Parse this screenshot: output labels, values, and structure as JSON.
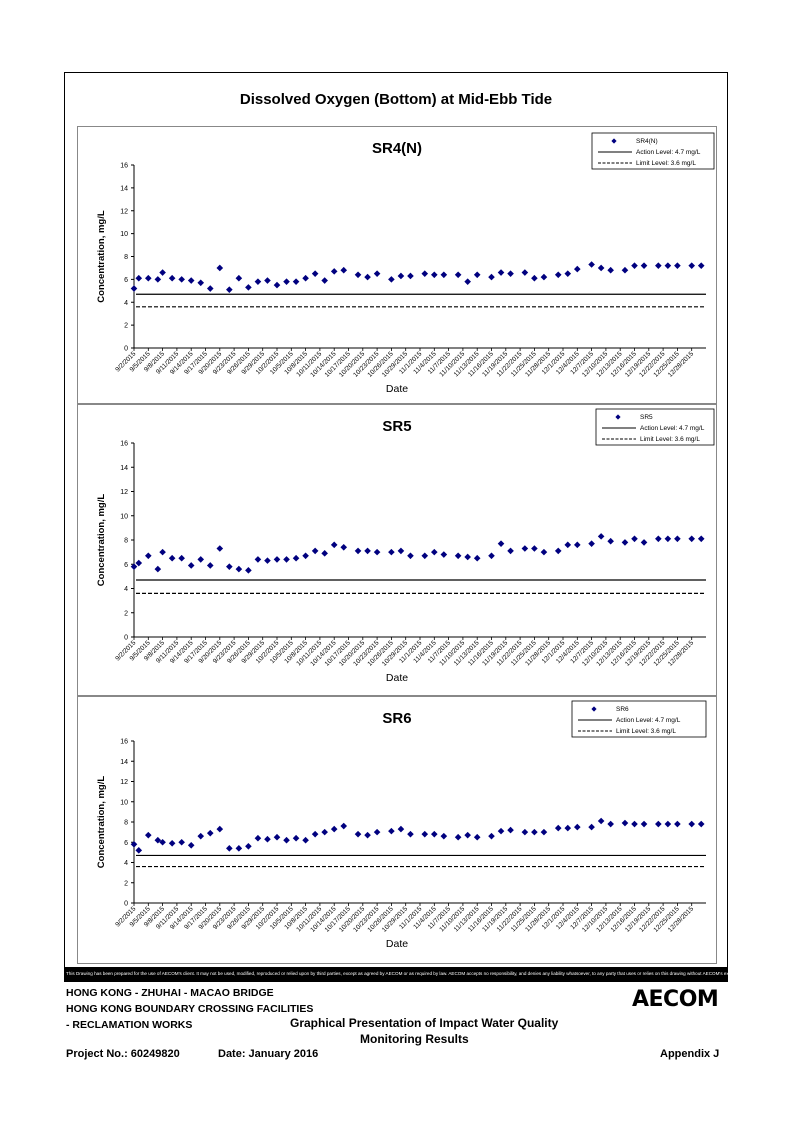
{
  "main_title": "Dissolved Oxygen (Bottom) at Mid-Ebb Tide",
  "chart_data": [
    {
      "type": "scatter",
      "title": "SR4(N)",
      "xlabel": "Date",
      "ylabel": "Concentration, mg/L",
      "ylim": [
        0,
        16
      ],
      "yticks": [
        0,
        2,
        4,
        6,
        8,
        10,
        12,
        14,
        16
      ],
      "x_tick_labels": [
        "9/2/2015",
        "9/5/2015",
        "9/8/2015",
        "9/11/2015",
        "9/14/2015",
        "9/17/2015",
        "9/20/2015",
        "9/23/2015",
        "9/26/2015",
        "9/29/2015",
        "10/2/2015",
        "10/5/2015",
        "10/8/2015",
        "10/11/2015",
        "10/14/2015",
        "10/17/2015",
        "10/20/2015",
        "10/23/2015",
        "10/26/2015",
        "10/29/2015",
        "11/1/2015",
        "11/4/2015",
        "11/7/2015",
        "11/10/2015",
        "11/13/2015",
        "11/16/2015",
        "11/19/2015",
        "11/22/2015",
        "11/25/2015",
        "11/28/2015",
        "12/1/2015",
        "12/4/2015",
        "12/7/2015",
        "12/10/2015",
        "12/13/2015",
        "12/16/2015",
        "12/19/2015",
        "12/22/2015",
        "12/25/2015",
        "12/28/2015"
      ],
      "x_range": [
        "9/2/2015",
        "12/31/2015"
      ],
      "legend_position": "top-right",
      "series": [
        {
          "name": "SR4(N)",
          "marker": "diamond",
          "color": "#00007f",
          "x": [
            "9/2/2015",
            "9/3/2015",
            "9/5/2015",
            "9/7/2015",
            "9/8/2015",
            "9/10/2015",
            "9/12/2015",
            "9/14/2015",
            "9/16/2015",
            "9/18/2015",
            "9/20/2015",
            "9/22/2015",
            "9/24/2015",
            "9/26/2015",
            "9/28/2015",
            "9/30/2015",
            "10/2/2015",
            "10/4/2015",
            "10/6/2015",
            "10/8/2015",
            "10/10/2015",
            "10/12/2015",
            "10/14/2015",
            "10/16/2015",
            "10/19/2015",
            "10/21/2015",
            "10/23/2015",
            "10/26/2015",
            "10/28/2015",
            "10/30/2015",
            "11/2/2015",
            "11/4/2015",
            "11/6/2015",
            "11/9/2015",
            "11/11/2015",
            "11/13/2015",
            "11/16/2015",
            "11/18/2015",
            "11/20/2015",
            "11/23/2015",
            "11/25/2015",
            "11/27/2015",
            "11/30/2015",
            "12/2/2015",
            "12/4/2015",
            "12/7/2015",
            "12/9/2015",
            "12/11/2015",
            "12/14/2015",
            "12/16/2015",
            "12/18/2015",
            "12/21/2015",
            "12/23/2015",
            "12/25/2015",
            "12/28/2015",
            "12/30/2015"
          ],
          "y": [
            5.2,
            6.1,
            6.1,
            6.0,
            6.6,
            6.1,
            6.0,
            5.9,
            5.7,
            5.2,
            7.0,
            5.1,
            6.1,
            5.3,
            5.8,
            5.9,
            5.5,
            5.8,
            5.8,
            6.1,
            6.5,
            5.9,
            6.7,
            6.8,
            6.4,
            6.2,
            6.5,
            6.0,
            6.3,
            6.3,
            6.5,
            6.4,
            6.4,
            6.4,
            5.8,
            6.4,
            6.2,
            6.6,
            6.5,
            6.6,
            6.1,
            6.2,
            6.4,
            6.5,
            6.9,
            7.3,
            7.0,
            6.8,
            6.8,
            7.2,
            7.2,
            7.2,
            7.2,
            7.2,
            7.2,
            7.2
          ]
        },
        {
          "name": "Action Level: 4.7 mg/L",
          "value": 4.7,
          "style": "solid"
        },
        {
          "name": "Limit Level: 3.6 mg/L",
          "value": 3.6,
          "style": "dashed"
        }
      ]
    },
    {
      "type": "scatter",
      "title": "SR5",
      "xlabel": "Date",
      "ylabel": "Concentration, mg/L",
      "ylim": [
        0,
        16
      ],
      "yticks": [
        0,
        2,
        4,
        6,
        8,
        10,
        12,
        14,
        16
      ],
      "x_tick_labels": [
        "9/2/2015",
        "9/5/2015",
        "9/8/2015",
        "9/11/2015",
        "9/14/2015",
        "9/17/2015",
        "9/20/2015",
        "9/23/2015",
        "9/26/2015",
        "9/29/2015",
        "10/2/2015",
        "10/5/2015",
        "10/8/2015",
        "10/11/2015",
        "10/14/2015",
        "10/17/2015",
        "10/20/2015",
        "10/23/2015",
        "10/26/2015",
        "10/29/2015",
        "11/1/2015",
        "11/4/2015",
        "11/7/2015",
        "11/10/2015",
        "11/13/2015",
        "11/16/2015",
        "11/19/2015",
        "11/22/2015",
        "11/25/2015",
        "11/28/2015",
        "12/1/2015",
        "12/4/2015",
        "12/7/2015",
        "12/10/2015",
        "12/13/2015",
        "12/16/2015",
        "12/19/2015",
        "12/22/2015",
        "12/25/2015",
        "12/28/2015"
      ],
      "x_range": [
        "9/2/2015",
        "12/31/2015"
      ],
      "legend_position": "top-right",
      "series": [
        {
          "name": "SR5",
          "marker": "diamond",
          "color": "#00007f",
          "x": [
            "9/2/2015",
            "9/3/2015",
            "9/5/2015",
            "9/7/2015",
            "9/8/2015",
            "9/10/2015",
            "9/12/2015",
            "9/14/2015",
            "9/16/2015",
            "9/18/2015",
            "9/20/2015",
            "9/22/2015",
            "9/24/2015",
            "9/26/2015",
            "9/28/2015",
            "9/30/2015",
            "10/2/2015",
            "10/4/2015",
            "10/6/2015",
            "10/8/2015",
            "10/10/2015",
            "10/12/2015",
            "10/14/2015",
            "10/16/2015",
            "10/19/2015",
            "10/21/2015",
            "10/23/2015",
            "10/26/2015",
            "10/28/2015",
            "10/30/2015",
            "11/2/2015",
            "11/4/2015",
            "11/6/2015",
            "11/9/2015",
            "11/11/2015",
            "11/13/2015",
            "11/16/2015",
            "11/18/2015",
            "11/20/2015",
            "11/23/2015",
            "11/25/2015",
            "11/27/2015",
            "11/30/2015",
            "12/2/2015",
            "12/4/2015",
            "12/7/2015",
            "12/9/2015",
            "12/11/2015",
            "12/14/2015",
            "12/16/2015",
            "12/18/2015",
            "12/21/2015",
            "12/23/2015",
            "12/25/2015",
            "12/28/2015",
            "12/30/2015"
          ],
          "y": [
            5.8,
            6.1,
            6.7,
            5.6,
            7.0,
            6.5,
            6.5,
            5.9,
            6.4,
            5.9,
            7.3,
            5.8,
            5.6,
            5.5,
            6.4,
            6.3,
            6.4,
            6.4,
            6.5,
            6.7,
            7.1,
            6.9,
            7.6,
            7.4,
            7.1,
            7.1,
            7.0,
            7.0,
            7.1,
            6.7,
            6.7,
            7.0,
            6.8,
            6.7,
            6.6,
            6.5,
            6.7,
            7.7,
            7.1,
            7.3,
            7.3,
            7.0,
            7.1,
            7.6,
            7.6,
            7.7,
            8.3,
            7.9,
            7.8,
            8.1,
            7.8,
            8.1,
            8.1,
            8.1,
            8.1,
            8.1
          ]
        },
        {
          "name": "Action Level: 4.7 mg/L",
          "value": 4.7,
          "style": "solid"
        },
        {
          "name": "Limit Level: 3.6 mg/L",
          "value": 3.6,
          "style": "dashed"
        }
      ]
    },
    {
      "type": "scatter",
      "title": "SR6",
      "xlabel": "Date",
      "ylabel": "Concentration, mg/L",
      "ylim": [
        0,
        16
      ],
      "yticks": [
        0,
        2,
        4,
        6,
        8,
        10,
        12,
        14,
        16
      ],
      "x_tick_labels": [
        "9/2/2015",
        "9/5/2015",
        "9/8/2015",
        "9/11/2015",
        "9/14/2015",
        "9/17/2015",
        "9/20/2015",
        "9/23/2015",
        "9/26/2015",
        "9/29/2015",
        "10/2/2015",
        "10/5/2015",
        "10/8/2015",
        "10/11/2015",
        "10/14/2015",
        "10/17/2015",
        "10/20/2015",
        "10/23/2015",
        "10/26/2015",
        "10/29/2015",
        "11/1/2015",
        "11/4/2015",
        "11/7/2015",
        "11/10/2015",
        "11/13/2015",
        "11/16/2015",
        "11/19/2015",
        "11/22/2015",
        "11/25/2015",
        "11/28/2015",
        "12/1/2015",
        "12/4/2015",
        "12/7/2015",
        "12/10/2015",
        "12/13/2015",
        "12/16/2015",
        "12/19/2015",
        "12/22/2015",
        "12/25/2015",
        "12/28/2015"
      ],
      "x_range": [
        "9/2/2015",
        "12/31/2015"
      ],
      "legend_position": "top-right",
      "series": [
        {
          "name": "SR6",
          "marker": "diamond",
          "color": "#00007f",
          "x": [
            "9/2/2015",
            "9/3/2015",
            "9/5/2015",
            "9/7/2015",
            "9/8/2015",
            "9/10/2015",
            "9/12/2015",
            "9/14/2015",
            "9/16/2015",
            "9/18/2015",
            "9/20/2015",
            "9/22/2015",
            "9/24/2015",
            "9/26/2015",
            "9/28/2015",
            "9/30/2015",
            "10/2/2015",
            "10/4/2015",
            "10/6/2015",
            "10/8/2015",
            "10/10/2015",
            "10/12/2015",
            "10/14/2015",
            "10/16/2015",
            "10/19/2015",
            "10/21/2015",
            "10/23/2015",
            "10/26/2015",
            "10/28/2015",
            "10/30/2015",
            "11/2/2015",
            "11/4/2015",
            "11/6/2015",
            "11/9/2015",
            "11/11/2015",
            "11/13/2015",
            "11/16/2015",
            "11/18/2015",
            "11/20/2015",
            "11/23/2015",
            "11/25/2015",
            "11/27/2015",
            "11/30/2015",
            "12/2/2015",
            "12/4/2015",
            "12/7/2015",
            "12/9/2015",
            "12/11/2015",
            "12/14/2015",
            "12/16/2015",
            "12/18/2015",
            "12/21/2015",
            "12/23/2015",
            "12/25/2015",
            "12/28/2015",
            "12/30/2015"
          ],
          "y": [
            5.8,
            5.2,
            6.7,
            6.2,
            6.0,
            5.9,
            6.0,
            5.7,
            6.6,
            6.9,
            7.3,
            5.4,
            5.4,
            5.6,
            6.4,
            6.3,
            6.5,
            6.2,
            6.4,
            6.2,
            6.8,
            7.0,
            7.3,
            7.6,
            6.8,
            6.7,
            7.0,
            7.1,
            7.3,
            6.8,
            6.8,
            6.8,
            6.6,
            6.5,
            6.7,
            6.5,
            6.6,
            7.1,
            7.2,
            7.0,
            7.0,
            7.0,
            7.4,
            7.4,
            7.5,
            7.5,
            8.1,
            7.8,
            7.9,
            7.8,
            7.8,
            7.8,
            7.8,
            7.8,
            7.8,
            7.8
          ]
        },
        {
          "name": "Action Level: 4.7 mg/L",
          "value": 4.7,
          "style": "solid"
        },
        {
          "name": "Limit Level: 3.6 mg/L",
          "value": 3.6,
          "style": "dashed"
        }
      ]
    }
  ],
  "disclaimer": "This Drawing has been prepared for the use of AECOM's client. It may not be used, modified, reproduced or relied upon by third parties, except as agreed by AECOM or as required by law. AECOM accepts no responsibility, and denies any liability whatsoever, to any party that uses or relies on this drawing without AECOM's express written consent.",
  "footer": {
    "line1": "HONG KONG - ZHUHAI - MACAO BRIDGE",
    "line2": "HONG KONG BOUNDARY CROSSING FACILITIES",
    "line3": "- RECLAMATION WORKS",
    "center_title_1": "Graphical Presentation of Impact Water Quality",
    "center_title_2": "Monitoring Results",
    "project_no": "Project No.: 60249820",
    "date": "Date: January 2016",
    "appendix": "Appendix J",
    "logo": "AECOM"
  }
}
